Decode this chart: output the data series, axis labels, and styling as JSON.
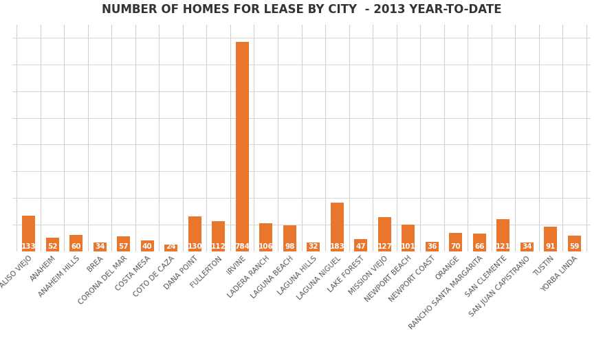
{
  "title": "NUMBER OF HOMES FOR LEASE BY CITY  - 2013 YEAR-TO-DATE",
  "categories": [
    "ALISO VIEJO",
    "ANAHEIM",
    "ANAHEIM HILLS",
    "BREA",
    "CORONA DEL MAR",
    "COSTA MESA",
    "COTO DE CAZA",
    "DANA POINT",
    "FULLERTON",
    "IRVINE",
    "LADERA RANCH",
    "LAGUNA BEACH",
    "LAGUNA HILLS",
    "LAGUNA NIGUEL",
    "LAKE FOREST",
    "MISSION VIEJO",
    "NEWPORT BEACH",
    "NEWPORT COAST",
    "ORANGE",
    "RANCHO SANTA MARGARITA",
    "SAN CLEMENTE",
    "SAN JUAN CAPISTRANO",
    "TUSTIN",
    "YORBA LINDA"
  ],
  "values": [
    133,
    52,
    60,
    34,
    57,
    40,
    24,
    130,
    112,
    784,
    106,
    98,
    32,
    183,
    47,
    127,
    101,
    36,
    70,
    66,
    121,
    34,
    91,
    59
  ],
  "bar_color": "#E8762D",
  "label_color": "#FFFFFF",
  "background_color": "#FFFFFF",
  "grid_color": "#D0D0D0",
  "title_fontsize": 12,
  "label_fontsize": 7.5,
  "tick_fontsize": 7.5,
  "ylim": [
    0,
    850
  ]
}
